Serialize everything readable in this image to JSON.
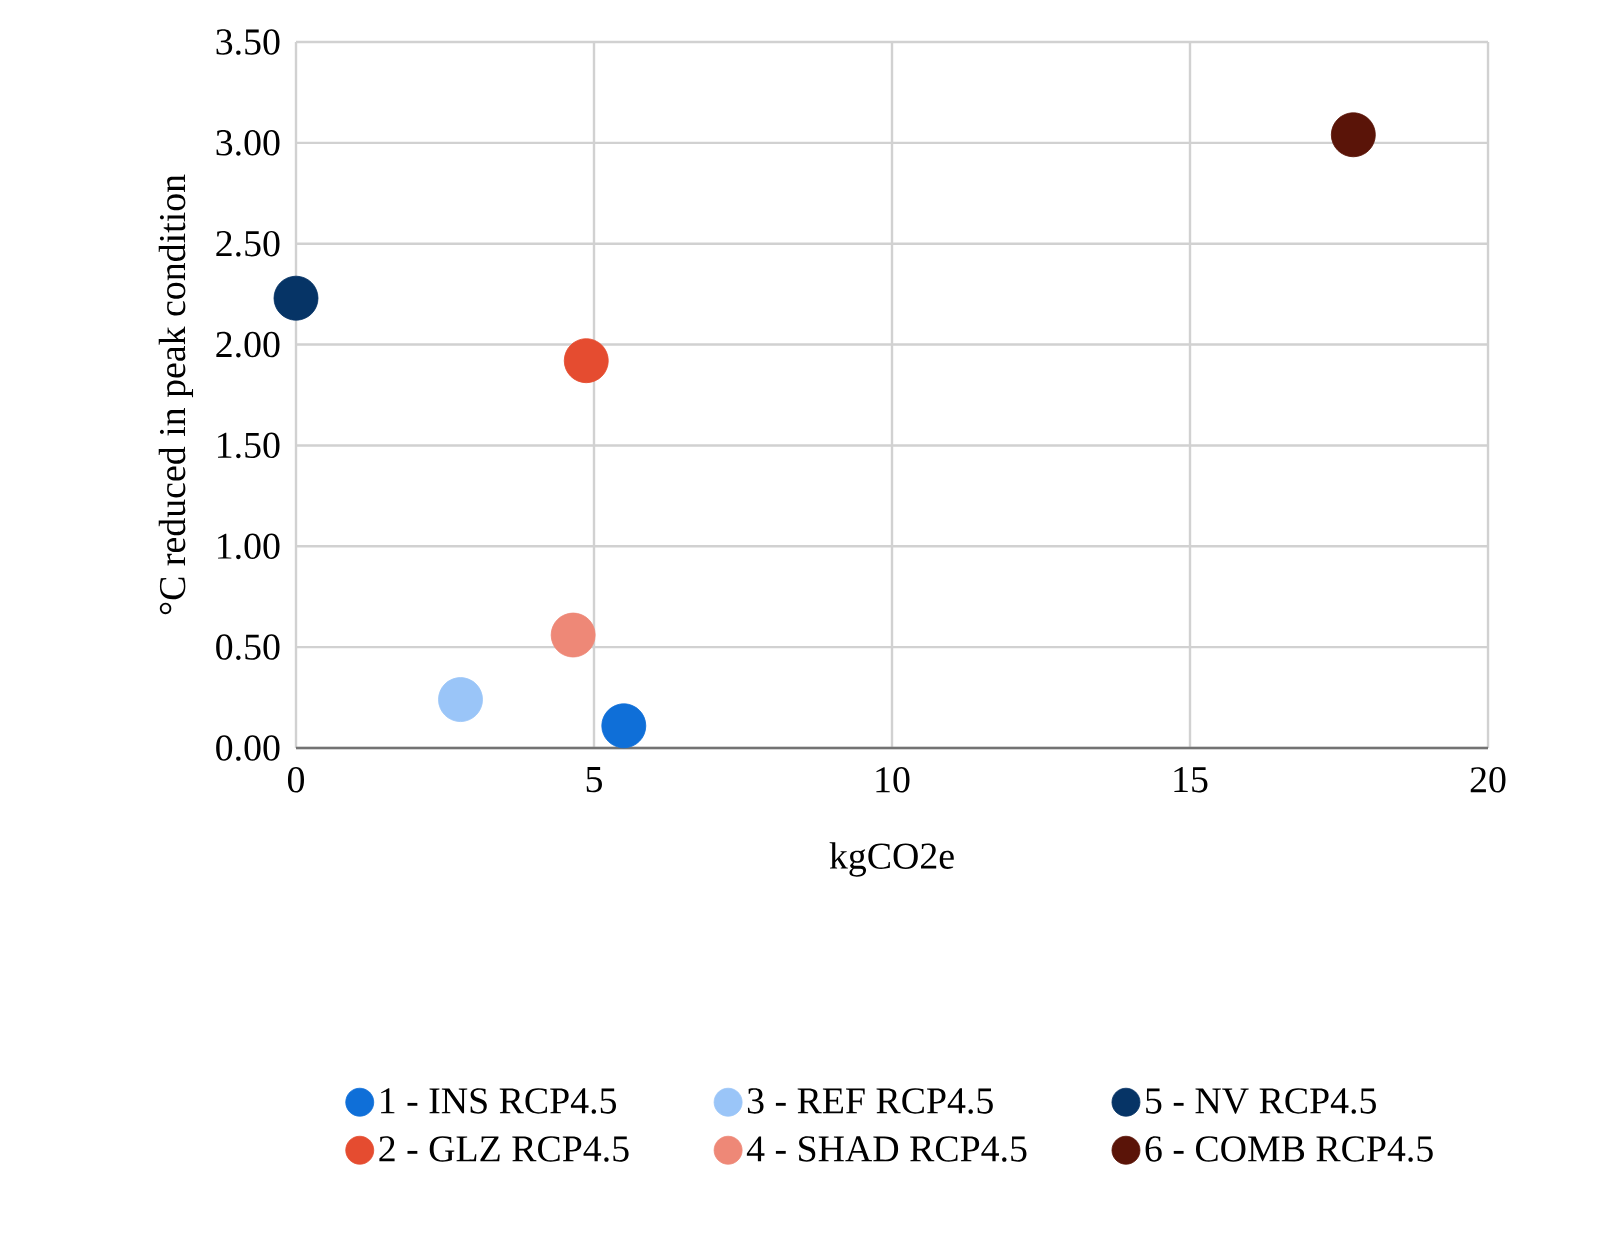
{
  "chart_data": {
    "type": "scatter",
    "xlabel": "kgCO2e",
    "ylabel": "°C reduced in peak condition",
    "xlim": [
      0,
      20
    ],
    "xticks": [
      0,
      5,
      10,
      15,
      20
    ],
    "ylim": [
      0,
      3.5
    ],
    "yticks": [
      {
        "value": 0,
        "label": "0.00"
      },
      {
        "value": 0.5,
        "label": "0.50"
      },
      {
        "value": 1,
        "label": "1.00"
      },
      {
        "value": 1.5,
        "label": "1.50"
      },
      {
        "value": 2,
        "label": "2.00"
      },
      {
        "value": 2.5,
        "label": "2.50"
      },
      {
        "value": 3,
        "label": "3.00"
      },
      {
        "value": 3.5,
        "label": "3.50"
      }
    ],
    "grid": true,
    "legend": "bottom",
    "marker": "circle",
    "series": [
      {
        "name": "1 - INS RCP4.5",
        "color": "#0f6fd8",
        "x": [
          5.5
        ],
        "values": [
          0.11
        ]
      },
      {
        "name": "2 - GLZ RCP4.5",
        "color": "#e54c30",
        "x": [
          4.87
        ],
        "values": [
          1.92
        ]
      },
      {
        "name": "3 - REF RCP4.5",
        "color": "#9ac5f8",
        "x": [
          2.76
        ],
        "values": [
          0.24
        ]
      },
      {
        "name": "4 - SHAD RCP4.5",
        "color": "#ee8877",
        "x": [
          4.65
        ],
        "values": [
          0.56
        ]
      },
      {
        "name": "5 - NV RCP4.5",
        "color": "#063466",
        "x": [
          0
        ],
        "values": [
          2.23
        ]
      },
      {
        "name": "6 - COMB RCP4.5",
        "color": "#5a1408",
        "x": [
          17.74
        ],
        "values": [
          3.04
        ]
      }
    ]
  }
}
